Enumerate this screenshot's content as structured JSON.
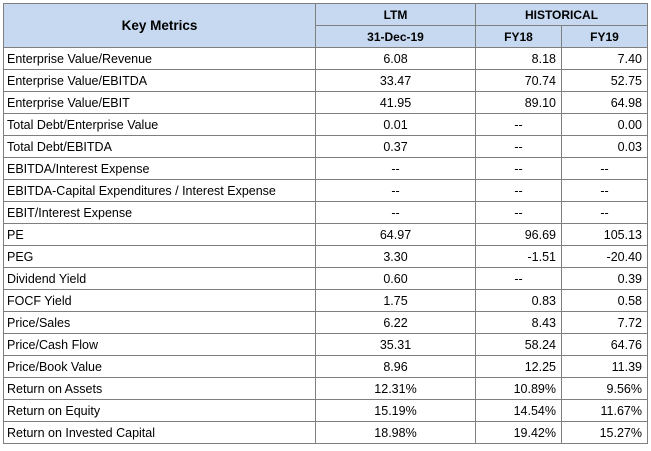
{
  "table": {
    "header": {
      "key_metrics": "Key Metrics",
      "ltm": "LTM",
      "historical": "HISTORICAL",
      "ltm_date": "31-Dec-19",
      "fy18": "FY18",
      "fy19": "FY19"
    },
    "rows": [
      {
        "metric": "Enterprise Value/Revenue",
        "ltm": "6.08",
        "fy18": "8.18",
        "fy19": "7.40"
      },
      {
        "metric": "Enterprise Value/EBITDA",
        "ltm": "33.47",
        "fy18": "70.74",
        "fy19": "52.75"
      },
      {
        "metric": "Enterprise Value/EBIT",
        "ltm": "41.95",
        "fy18": "89.10",
        "fy19": "64.98"
      },
      {
        "metric": "Total Debt/Enterprise Value",
        "ltm": "0.01",
        "fy18": "--",
        "fy19": "0.00"
      },
      {
        "metric": "Total Debt/EBITDA",
        "ltm": "0.37",
        "fy18": "--",
        "fy19": "0.03"
      },
      {
        "metric": "EBITDA/Interest Expense",
        "ltm": "--",
        "fy18": "--",
        "fy19": "--"
      },
      {
        "metric": "EBITDA-Capital Expenditures / Interest Expense",
        "ltm": "--",
        "fy18": "--",
        "fy19": "--"
      },
      {
        "metric": "EBIT/Interest Expense",
        "ltm": "--",
        "fy18": "--",
        "fy19": "--"
      },
      {
        "metric": "PE",
        "ltm": "64.97",
        "fy18": "96.69",
        "fy19": "105.13"
      },
      {
        "metric": "PEG",
        "ltm": "3.30",
        "fy18": "-1.51",
        "fy19": "-20.40"
      },
      {
        "metric": "Dividend Yield",
        "ltm": "0.60",
        "fy18": "--",
        "fy19": "0.39"
      },
      {
        "metric": "FOCF Yield",
        "ltm": "1.75",
        "fy18": "0.83",
        "fy19": "0.58"
      },
      {
        "metric": "Price/Sales",
        "ltm": "6.22",
        "fy18": "8.43",
        "fy19": "7.72"
      },
      {
        "metric": "Price/Cash Flow",
        "ltm": "35.31",
        "fy18": "58.24",
        "fy19": "64.76"
      },
      {
        "metric": "Price/Book Value",
        "ltm": "8.96",
        "fy18": "12.25",
        "fy19": "11.39"
      },
      {
        "metric": "Return on Assets",
        "ltm": "12.31%",
        "fy18": "10.89%",
        "fy19": "9.56%"
      },
      {
        "metric": "Return on Equity",
        "ltm": "15.19%",
        "fy18": "14.54%",
        "fy19": "11.67%"
      },
      {
        "metric": "Return on Invested Capital",
        "ltm": "18.98%",
        "fy18": "19.42%",
        "fy19": "15.27%"
      }
    ]
  },
  "colors": {
    "header_bg": "#c6d9f1",
    "border": "#7f7f7f"
  }
}
